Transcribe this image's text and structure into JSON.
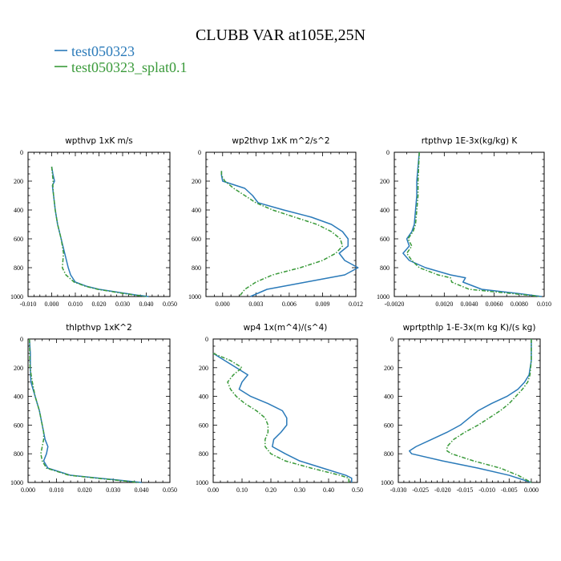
{
  "figure": {
    "title": "CLUBB VAR at105E,25N",
    "legend": [
      {
        "label": "test050323",
        "color": "#2a7ab9"
      },
      {
        "label": "test050323_splat0.1",
        "color": "#3a9a3a"
      }
    ]
  },
  "chart_data": [
    {
      "type": "line",
      "title": "wpthvp  1xK m/s",
      "xlim": [
        -0.01,
        0.05
      ],
      "xticks": [
        "-0.010",
        "0.000",
        "0.010",
        "0.020",
        "0.030",
        "0.040",
        "0.050"
      ],
      "xtick_values": [
        -0.01,
        0.0,
        0.01,
        0.02,
        0.03,
        0.04,
        0.05
      ],
      "ylim": [
        0,
        1000
      ],
      "yticks": [
        "0",
        "200",
        "400",
        "600",
        "800",
        "1000"
      ],
      "y": [
        100,
        150,
        200,
        230,
        260,
        300,
        400,
        500,
        600,
        700,
        800,
        850,
        900,
        930,
        950,
        970,
        990,
        1000
      ],
      "series": [
        {
          "name": "test050323",
          "values": [
            0.0,
            0.0005,
            0.0012,
            0.0003,
            0.0005,
            0.0008,
            0.0015,
            0.0025,
            0.004,
            0.0055,
            0.007,
            0.008,
            0.01,
            0.015,
            0.02,
            0.028,
            0.036,
            0.041
          ]
        },
        {
          "name": "test050323_splat0.1",
          "values": [
            0.0,
            0.0003,
            0.0006,
            0.0005,
            0.0006,
            0.0008,
            0.0015,
            0.0025,
            0.004,
            0.005,
            0.0045,
            0.006,
            0.0095,
            0.0145,
            0.0195,
            0.027,
            0.035,
            0.04
          ]
        }
      ]
    },
    {
      "type": "line",
      "title": "wp2thvp  1xK m^2/s^2",
      "xlim": [
        -0.0015,
        0.012
      ],
      "xticks": [
        "0.000",
        "0.003",
        "0.006",
        "0.009",
        "0.012"
      ],
      "xtick_values": [
        0.0,
        0.003,
        0.006,
        0.009,
        0.012
      ],
      "ylim": [
        0,
        1000
      ],
      "yticks": [
        "0",
        "200",
        "400",
        "600",
        "800",
        "1000"
      ],
      "y": [
        130,
        160,
        200,
        250,
        300,
        350,
        400,
        450,
        500,
        550,
        600,
        650,
        700,
        750,
        800,
        850,
        900,
        950,
        1000
      ],
      "series": [
        {
          "name": "test050323",
          "values": [
            -0.0001,
            -0.0001,
            0.0,
            0.002,
            0.0027,
            0.0032,
            0.0055,
            0.008,
            0.0098,
            0.0108,
            0.0113,
            0.0113,
            0.0105,
            0.011,
            0.0122,
            0.011,
            0.0075,
            0.004,
            0.0025
          ]
        },
        {
          "name": "test050323_splat0.1",
          "values": [
            -0.0001,
            -0.0001,
            0.0002,
            0.001,
            0.002,
            0.003,
            0.0045,
            0.0065,
            0.0085,
            0.0098,
            0.0106,
            0.0108,
            0.0102,
            0.009,
            0.007,
            0.0045,
            0.003,
            0.002,
            0.0015
          ]
        }
      ]
    },
    {
      "type": "line",
      "title": "rtpthvp  1E-3x(kg/kg) K",
      "xlim": [
        -0.002,
        0.01
      ],
      "xticks": [
        "-0.0020",
        "0.0020",
        "0.0040",
        "0.0060",
        "0.0080",
        "0.010"
      ],
      "xtick_values": [
        -0.002,
        0.002,
        0.004,
        0.006,
        0.008,
        0.01
      ],
      "ylim": [
        0,
        1000
      ],
      "yticks": [
        "0",
        "200",
        "400",
        "600",
        "800",
        "1000"
      ],
      "y": [
        0,
        200,
        300,
        400,
        500,
        550,
        600,
        650,
        700,
        750,
        800,
        850,
        870,
        900,
        950,
        980,
        1000
      ],
      "series": [
        {
          "name": "test050323",
          "values": [
            0.0,
            -0.0002,
            -0.0002,
            -0.0003,
            -0.0004,
            -0.0006,
            -0.001,
            -0.0008,
            -0.0013,
            -0.0008,
            0.0005,
            0.0025,
            0.0037,
            0.0035,
            0.005,
            0.008,
            0.0098
          ]
        },
        {
          "name": "test050323_splat0.1",
          "values": [
            0.0,
            -0.0001,
            -0.0001,
            -0.0002,
            -0.0003,
            -0.0005,
            -0.0009,
            -0.0006,
            -0.001,
            -0.0006,
            0.0,
            0.0015,
            0.0025,
            0.0026,
            0.004,
            0.0075,
            0.0097
          ]
        }
      ]
    },
    {
      "type": "line",
      "title": "thlpthvp  1xK^2",
      "xlim": [
        0.0,
        0.05
      ],
      "xticks": [
        "0.000",
        "0.010",
        "0.020",
        "0.030",
        "0.040",
        "0.050"
      ],
      "xtick_values": [
        0.0,
        0.01,
        0.02,
        0.03,
        0.04,
        0.05
      ],
      "ylim": [
        0,
        1000
      ],
      "yticks": [
        "0",
        "200",
        "400",
        "600",
        "800",
        "1000"
      ],
      "y": [
        0,
        100,
        200,
        300,
        400,
        500,
        600,
        650,
        700,
        750,
        800,
        850,
        900,
        950,
        980,
        1000
      ],
      "series": [
        {
          "name": "test050323",
          "values": [
            0.0005,
            0.0008,
            0.0008,
            0.001,
            0.0025,
            0.004,
            0.005,
            0.0055,
            0.006,
            0.007,
            0.0065,
            0.0055,
            0.007,
            0.015,
            0.03,
            0.04
          ]
        },
        {
          "name": "test050323_splat0.1",
          "values": [
            0.0005,
            0.0006,
            0.0007,
            0.0015,
            0.0025,
            0.004,
            0.005,
            0.0055,
            0.0055,
            0.005,
            0.0045,
            0.005,
            0.0065,
            0.0145,
            0.029,
            0.039
          ]
        }
      ]
    },
    {
      "type": "line",
      "title": "wp4  1x(m^4)/(s^4)",
      "xlim": [
        0.0,
        0.5
      ],
      "xticks": [
        "0.00",
        "0.10",
        "0.20",
        "0.30",
        "0.40",
        "0.50"
      ],
      "xtick_values": [
        0.0,
        0.1,
        0.2,
        0.3,
        0.4,
        0.5
      ],
      "ylim": [
        0,
        1000
      ],
      "yticks": [
        "0",
        "200",
        "400",
        "600",
        "800",
        "1000"
      ],
      "y": [
        100,
        150,
        200,
        250,
        300,
        350,
        400,
        450,
        500,
        550,
        600,
        650,
        700,
        750,
        800,
        850,
        900,
        950,
        970,
        1000
      ],
      "series": [
        {
          "name": "test050323",
          "values": [
            0.0,
            0.04,
            0.08,
            0.12,
            0.1,
            0.09,
            0.13,
            0.19,
            0.24,
            0.255,
            0.255,
            0.235,
            0.21,
            0.205,
            0.25,
            0.3,
            0.38,
            0.46,
            0.48,
            0.48
          ]
        },
        {
          "name": "test050323_splat0.1",
          "values": [
            0.0,
            0.06,
            0.1,
            0.07,
            0.05,
            0.06,
            0.08,
            0.11,
            0.15,
            0.18,
            0.19,
            0.19,
            0.18,
            0.18,
            0.2,
            0.25,
            0.34,
            0.44,
            0.47,
            0.47
          ]
        }
      ]
    },
    {
      "type": "line",
      "title": "wprtpthlp  1-E-3x(m kg K)/(s kg)",
      "xlim": [
        -0.03,
        0.002
      ],
      "xticks": [
        "-0.030",
        "-0.025",
        "-0.020",
        "-0.015",
        "-0.010",
        "-0.005",
        "0.000"
      ],
      "xtick_values": [
        -0.03,
        -0.025,
        -0.02,
        -0.015,
        -0.01,
        -0.005,
        0.0
      ],
      "ylim": [
        0,
        1000
      ],
      "yticks": [
        "0",
        "200",
        "400",
        "600",
        "800",
        "1000"
      ],
      "y": [
        0,
        150,
        250,
        300,
        350,
        400,
        450,
        500,
        550,
        600,
        650,
        700,
        750,
        780,
        800,
        850,
        900,
        950,
        1000
      ],
      "series": [
        {
          "name": "test050323",
          "values": [
            0.0,
            0.0,
            -0.0005,
            -0.0015,
            -0.003,
            -0.0055,
            -0.009,
            -0.012,
            -0.014,
            -0.016,
            -0.019,
            -0.0225,
            -0.026,
            -0.0275,
            -0.027,
            -0.02,
            -0.012,
            -0.005,
            0.0
          ]
        },
        {
          "name": "test050323_splat0.1",
          "values": [
            0.0,
            0.0,
            -0.0003,
            -0.0008,
            -0.002,
            -0.0035,
            -0.005,
            -0.007,
            -0.0095,
            -0.012,
            -0.015,
            -0.0175,
            -0.019,
            -0.019,
            -0.018,
            -0.013,
            -0.007,
            -0.003,
            0.0
          ]
        }
      ]
    }
  ]
}
